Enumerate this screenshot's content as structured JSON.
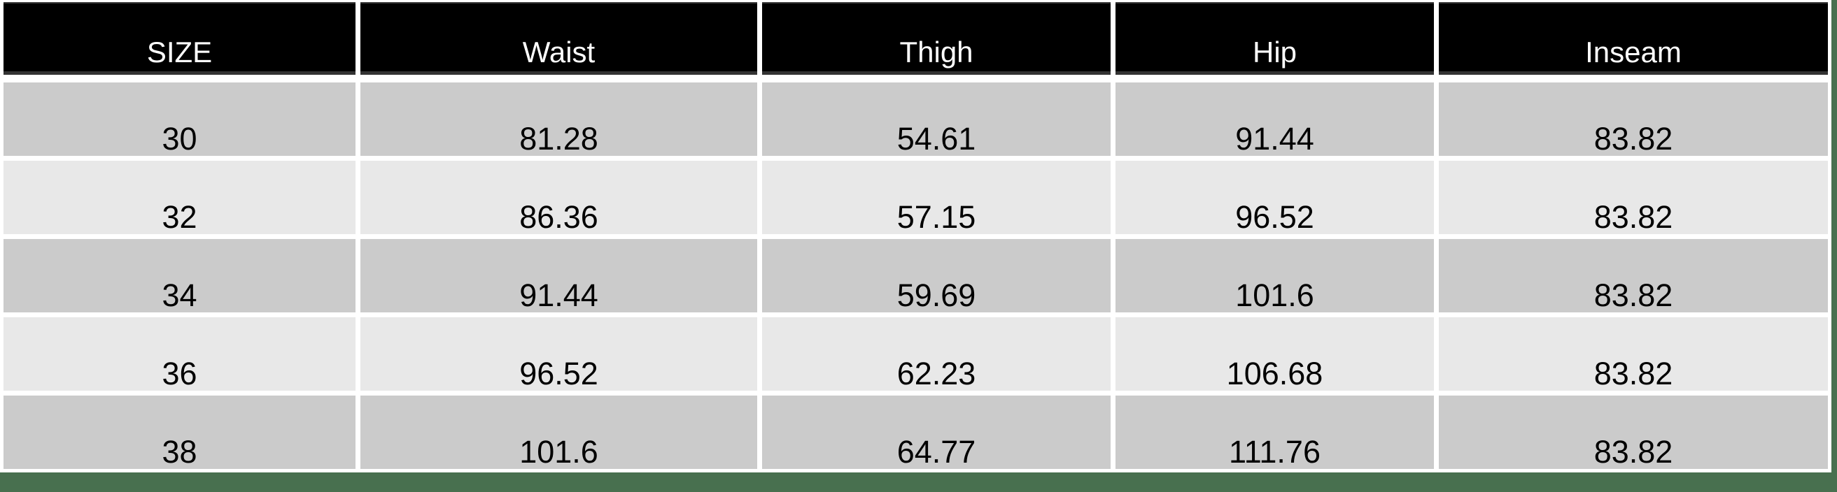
{
  "chart_data": {
    "type": "table",
    "columns": [
      "SIZE",
      "Waist",
      "Thigh",
      "Hip",
      "Inseam"
    ],
    "rows": [
      [
        "30",
        "81.28",
        "54.61",
        "91.44",
        "83.82"
      ],
      [
        "32",
        "86.36",
        "57.15",
        "96.52",
        "83.82"
      ],
      [
        "34",
        "91.44",
        "59.69",
        "101.6",
        "83.82"
      ],
      [
        "36",
        "96.52",
        "62.23",
        "106.68",
        "83.82"
      ],
      [
        "38",
        "101.6",
        "64.77",
        "111.76",
        "83.82"
      ]
    ]
  },
  "colors": {
    "header_bg": "#000000",
    "header_text": "#ffffff",
    "row_dark": "#cbcbcb",
    "row_light": "#e8e8e8",
    "cell_text": "#000000",
    "background_white": "#ffffff",
    "accent_green": "#48704f"
  }
}
